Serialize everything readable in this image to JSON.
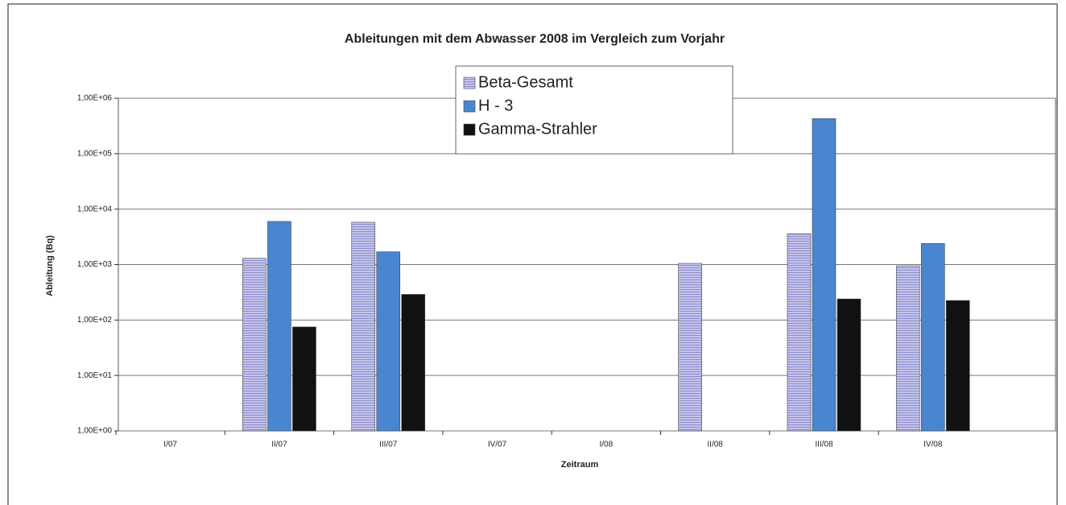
{
  "chart_data": {
    "type": "bar",
    "title": "Ableitungen mit dem Abwasser 2008 im Vergleich zum Vorjahr",
    "x_label": "Zeitraum",
    "y_label": "Ableitung (Bq)",
    "categories": [
      "I/07",
      "II/07",
      "III/07",
      "IV/07",
      "I/08",
      "II/08",
      "III/08",
      "IV/08"
    ],
    "series": [
      {
        "name": "Beta-Gesamt",
        "color": "#b4b4e6",
        "values": [
          null,
          1300,
          5800,
          null,
          null,
          1050,
          3600,
          950
        ]
      },
      {
        "name": "H - 3",
        "color": "#4a86d0",
        "values": [
          null,
          6000,
          1700,
          null,
          null,
          null,
          430000,
          2400
        ]
      },
      {
        "name": "Gamma-Strahler",
        "color": "#111111",
        "values": [
          null,
          75,
          290,
          null,
          null,
          null,
          240,
          225
        ]
      }
    ],
    "ylim": [
      1,
      1000000
    ],
    "log_scale": true,
    "grid": true,
    "yticks": [
      {
        "value": 1,
        "label": "1,00E+00"
      },
      {
        "value": 10,
        "label": "1,00E+01"
      },
      {
        "value": 100,
        "label": "1,00E+02"
      },
      {
        "value": 1000,
        "label": "1,00E+03"
      },
      {
        "value": 10000,
        "label": "1,00E+04"
      },
      {
        "value": 100000,
        "label": "1,00E+05"
      },
      {
        "value": 1000000,
        "label": "1,00E+06"
      }
    ]
  }
}
